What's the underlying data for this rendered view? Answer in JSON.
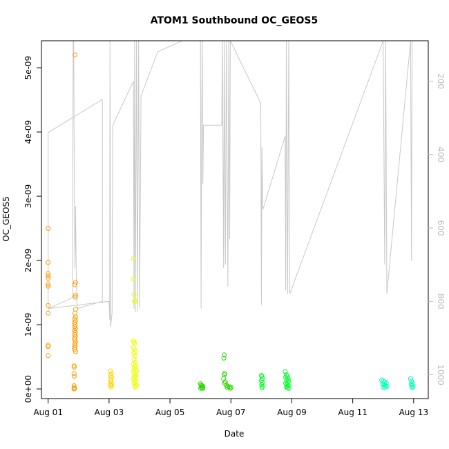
{
  "chart_data": {
    "type": "scatter",
    "title": "ATOM1 Southbound OC_GEOS5",
    "xlabel": "Date",
    "ylabel": "OC_GEOS5",
    "x_ticks": [
      "Aug 01",
      "Aug 03",
      "Aug 05",
      "Aug 07",
      "Aug 09",
      "Aug 11",
      "Aug 13"
    ],
    "x_tick_days": [
      1,
      3,
      5,
      7,
      9,
      11,
      13
    ],
    "xlim": [
      0.78,
      13.48
    ],
    "y_ticks": [
      "0e+00",
      "1e-09",
      "2e-09",
      "3e-09",
      "4e-09",
      "5e-09"
    ],
    "y_tick_values": [
      0,
      1e-09,
      2e-09,
      3e-09,
      4e-09,
      5e-09
    ],
    "ylim": [
      -1.5e-10,
      5.42e-09
    ],
    "y2_ticks": [
      "200",
      "400",
      "600",
      "800",
      "1000"
    ],
    "y2_tick_values": [
      200,
      400,
      600,
      800,
      1000
    ],
    "y2lim": [
      1065,
      90
    ],
    "y2_reversed": true,
    "grid": false,
    "colors": {
      "series": [
        "#ff9a00",
        "#ffd400",
        "#eaff00",
        "#2ad900",
        "#00ff29",
        "#00ffb4"
      ],
      "pressure_line": "#c8c8c8",
      "axis": "#000000",
      "right_axis": "#bdbdbd"
    },
    "series": [
      {
        "color": "#ff9a00",
        "points": [
          [
            1.0,
            2.5e-09
          ],
          [
            1.0,
            1.97e-09
          ],
          [
            1.0,
            1.8e-09
          ],
          [
            1.0,
            1.76e-09
          ],
          [
            1.0,
            1.72e-09
          ],
          [
            1.0,
            1.63e-09
          ],
          [
            1.0,
            1.6e-09
          ],
          [
            1.0,
            1.3e-09
          ],
          [
            1.0,
            1.18e-09
          ],
          [
            1.0,
            6.8e-10
          ],
          [
            1.0,
            6.6e-10
          ],
          [
            1.0,
            5.2e-10
          ],
          [
            1.88,
            5.2e-09
          ],
          [
            1.9,
            1.66e-09
          ],
          [
            1.88,
            1.62e-09
          ],
          [
            1.9,
            1.46e-09
          ],
          [
            1.89,
            1.43e-09
          ],
          [
            1.9,
            1.24e-09
          ],
          [
            1.88,
            1.18e-09
          ],
          [
            1.9,
            1.12e-09
          ],
          [
            1.87,
            1.09e-09
          ],
          [
            1.9,
            1.06e-09
          ],
          [
            1.86,
            1.03e-09
          ],
          [
            1.89,
            1e-09
          ],
          [
            1.87,
            9.7e-10
          ],
          [
            1.9,
            9.4e-10
          ],
          [
            1.86,
            9.1e-10
          ],
          [
            1.89,
            8.8e-10
          ],
          [
            1.87,
            8.5e-10
          ],
          [
            1.9,
            8.2e-10
          ],
          [
            1.86,
            7.9e-10
          ],
          [
            1.88,
            7.6e-10
          ],
          [
            1.9,
            7.3e-10
          ],
          [
            1.87,
            7e-10
          ],
          [
            1.89,
            6.7e-10
          ],
          [
            1.86,
            6.4e-10
          ],
          [
            1.88,
            6.1e-10
          ],
          [
            1.9,
            5.8e-10
          ],
          [
            1.85,
            3.6e-10
          ],
          [
            1.86,
            3.4e-10
          ],
          [
            1.85,
            2.4e-10
          ],
          [
            1.86,
            2e-10
          ],
          [
            1.85,
            5e-11
          ],
          [
            1.86,
            2e-11
          ],
          [
            1.87,
            1e-11
          ],
          [
            1.85,
            0.0
          ]
        ]
      },
      {
        "color": "#ffd400",
        "points": [
          [
            3.05,
            2.8e-10
          ],
          [
            3.07,
            2.4e-10
          ],
          [
            3.06,
            2.1e-10
          ],
          [
            3.08,
            1.8e-10
          ],
          [
            3.05,
            1.5e-10
          ],
          [
            3.07,
            1.2e-10
          ],
          [
            3.06,
            9e-11
          ],
          [
            3.08,
            7e-11
          ],
          [
            3.05,
            5e-11
          ],
          [
            3.07,
            3e-11
          ]
        ]
      },
      {
        "color": "#eaff00",
        "points": [
          [
            3.8,
            2.03e-09
          ],
          [
            3.8,
            1.71e-09
          ],
          [
            3.82,
            1.47e-09
          ],
          [
            3.84,
            1.36e-09
          ],
          [
            3.86,
            1.37e-09
          ],
          [
            3.8,
            7.5e-10
          ],
          [
            3.82,
            7.3e-10
          ],
          [
            3.84,
            7.1e-10
          ],
          [
            3.8,
            6.5e-10
          ],
          [
            3.83,
            6.2e-10
          ],
          [
            3.86,
            5.8e-10
          ],
          [
            3.81,
            5.5e-10
          ],
          [
            3.85,
            5.1e-10
          ],
          [
            3.82,
            4.6e-10
          ],
          [
            3.87,
            4.2e-10
          ],
          [
            3.8,
            3.9e-10
          ],
          [
            3.84,
            3.6e-10
          ],
          [
            3.88,
            3.4e-10
          ],
          [
            3.82,
            3.2e-10
          ],
          [
            3.86,
            3e-10
          ],
          [
            3.9,
            2.8e-10
          ],
          [
            3.81,
            2.6e-10
          ],
          [
            3.85,
            2.4e-10
          ],
          [
            3.89,
            2.2e-10
          ],
          [
            3.83,
            2e-10
          ],
          [
            3.87,
            1.8e-10
          ],
          [
            3.8,
            1.6e-10
          ],
          [
            3.84,
            1.4e-10
          ],
          [
            3.88,
            1.2e-10
          ],
          [
            3.82,
            1e-10
          ],
          [
            3.86,
            8e-11
          ],
          [
            3.9,
            6e-11
          ],
          [
            3.84,
            4e-11
          ],
          [
            3.88,
            2e-11
          ]
        ]
      },
      {
        "color": "#2ad900",
        "points": [
          [
            6.0,
            8e-11
          ],
          [
            6.02,
            6e-11
          ],
          [
            6.05,
            5e-11
          ],
          [
            6.08,
            4e-11
          ],
          [
            6.03,
            3e-11
          ],
          [
            6.06,
            2e-11
          ],
          [
            6.01,
            1e-11
          ],
          [
            6.07,
            1e-11
          ],
          [
            6.78,
            5.3e-10
          ],
          [
            6.77,
            4.8e-10
          ],
          [
            6.8,
            2.4e-10
          ],
          [
            6.78,
            2.2e-10
          ],
          [
            6.76,
            1.6e-10
          ],
          [
            6.82,
            1.1e-10
          ],
          [
            6.79,
            9e-11
          ],
          [
            6.85,
            6e-11
          ],
          [
            6.9,
            4e-11
          ],
          [
            6.95,
            3e-11
          ],
          [
            7.0,
            3e-11
          ],
          [
            6.88,
            2e-11
          ],
          [
            6.98,
            1e-11
          ]
        ]
      },
      {
        "color": "#00ff29",
        "points": [
          [
            8.0,
            2.1e-10
          ],
          [
            8.02,
            1.9e-10
          ],
          [
            8.04,
            1.6e-10
          ],
          [
            8.0,
            1.3e-10
          ],
          [
            8.03,
            1e-10
          ],
          [
            8.01,
            7e-11
          ],
          [
            8.04,
            4e-11
          ],
          [
            8.02,
            2e-11
          ],
          [
            8.78,
            2.7e-10
          ],
          [
            8.82,
            2.2e-10
          ],
          [
            8.85,
            2e-10
          ],
          [
            8.8,
            1.8e-10
          ],
          [
            8.88,
            1.6e-10
          ],
          [
            8.83,
            1.4e-10
          ],
          [
            8.9,
            1.2e-10
          ],
          [
            8.86,
            1e-10
          ],
          [
            8.8,
            9e-11
          ],
          [
            8.84,
            7e-11
          ],
          [
            8.88,
            5e-11
          ],
          [
            8.82,
            3e-11
          ],
          [
            8.86,
            2e-11
          ],
          [
            8.9,
            1e-11
          ]
        ]
      },
      {
        "color": "#00ffb4",
        "points": [
          [
            11.95,
            1.4e-10
          ],
          [
            12.0,
            1.2e-10
          ],
          [
            12.05,
            1.1e-10
          ],
          [
            12.1,
            9e-11
          ],
          [
            11.98,
            8e-11
          ],
          [
            12.03,
            6e-11
          ],
          [
            12.08,
            5e-11
          ],
          [
            12.12,
            4e-11
          ],
          [
            12.0,
            3e-11
          ],
          [
            12.06,
            2e-11
          ],
          [
            12.9,
            1.6e-10
          ],
          [
            12.93,
            1.2e-10
          ],
          [
            12.96,
            9e-11
          ],
          [
            12.92,
            7e-11
          ],
          [
            12.95,
            5e-11
          ],
          [
            12.98,
            3e-11
          ],
          [
            12.94,
            2e-11
          ]
        ]
      }
    ],
    "pressure_line": [
      [
        1.0,
        830
      ],
      [
        1.0,
        340
      ],
      [
        2.78,
        250
      ],
      [
        2.78,
        800
      ],
      [
        1.95,
        820
      ],
      [
        1.92,
        710
      ],
      [
        1.9,
        540
      ],
      [
        1.88,
        710
      ],
      [
        1.86,
        480
      ],
      [
        1.84,
        90
      ],
      [
        1.82,
        90
      ],
      [
        1.8,
        790
      ],
      [
        1.0,
        820
      ],
      [
        3.0,
        800
      ],
      [
        3.02,
        850
      ],
      [
        3.03,
        90
      ],
      [
        3.05,
        870
      ],
      [
        3.1,
        830
      ],
      [
        3.12,
        320
      ],
      [
        3.8,
        200
      ],
      [
        3.82,
        820
      ],
      [
        3.84,
        90
      ],
      [
        3.86,
        830
      ],
      [
        3.9,
        90
      ],
      [
        3.93,
        830
      ],
      [
        3.97,
        90
      ],
      [
        4.0,
        820
      ],
      [
        4.05,
        240
      ],
      [
        4.6,
        120
      ],
      [
        5.4,
        90
      ],
      [
        6.0,
        90
      ],
      [
        6.02,
        820
      ],
      [
        6.04,
        320
      ],
      [
        6.06,
        90
      ],
      [
        6.08,
        480
      ],
      [
        6.1,
        320
      ],
      [
        6.7,
        320
      ],
      [
        6.72,
        90
      ],
      [
        6.76,
        710
      ],
      [
        6.78,
        90
      ],
      [
        6.82,
        700
      ],
      [
        6.85,
        90
      ],
      [
        6.9,
        760
      ],
      [
        6.93,
        90
      ],
      [
        6.96,
        630
      ],
      [
        6.98,
        90
      ],
      [
        7.98,
        260
      ],
      [
        8.0,
        810
      ],
      [
        8.02,
        380
      ],
      [
        8.05,
        550
      ],
      [
        8.78,
        350
      ],
      [
        8.8,
        770
      ],
      [
        8.82,
        90
      ],
      [
        8.86,
        780
      ],
      [
        8.9,
        90
      ],
      [
        8.93,
        780
      ],
      [
        12.0,
        90
      ],
      [
        12.05,
        700
      ],
      [
        12.08,
        90
      ],
      [
        12.12,
        780
      ],
      [
        12.9,
        90
      ],
      [
        12.93,
        690
      ],
      [
        12.95,
        90
      ]
    ]
  }
}
